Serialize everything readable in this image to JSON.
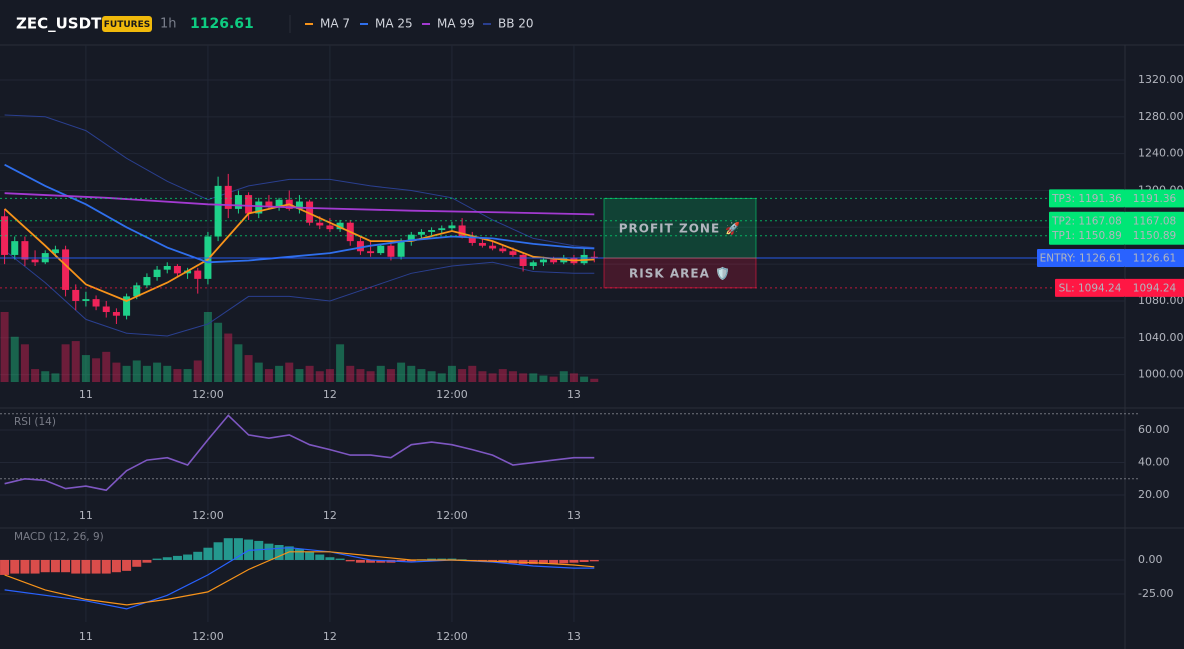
{
  "header": {
    "symbol": "ZEC_USDT",
    "badge": "FUTURES",
    "interval": "1h",
    "price": 1126.61
  },
  "chart_data": [
    {
      "type": "candlestick",
      "xlim": [
        -0.45,
        110.2
      ],
      "xticks": [
        {
          "value": 8,
          "label": "11"
        },
        {
          "value": 20,
          "label": "12:00"
        },
        {
          "value": 32,
          "label": "12"
        },
        {
          "value": 44,
          "label": "12:00"
        },
        {
          "value": 56,
          "label": "13"
        }
      ],
      "ylim": [
        992,
        1358
      ],
      "yticks": [
        {
          "value": 1000,
          "label": "1000.00"
        },
        {
          "value": 1040,
          "label": "1040.00"
        },
        {
          "value": 1080,
          "label": "1080.00"
        },
        {
          "value": 1120,
          "label": "1120.00"
        },
        {
          "value": 1160,
          "label": "1160.00"
        },
        {
          "value": 1200,
          "label": "1200.00"
        },
        {
          "value": 1240,
          "label": "1240.00"
        },
        {
          "value": 1280,
          "label": "1280.00"
        },
        {
          "value": 1320,
          "label": "1320.00"
        }
      ],
      "grid": true,
      "up_color": "#1fd18a",
      "down_color": "#f0245a",
      "open": [
        1172,
        1130,
        1145,
        1125,
        1122,
        1132,
        1136,
        1092,
        1080,
        1082,
        1074,
        1068,
        1064,
        1085,
        1097,
        1106,
        1114,
        1118,
        1110,
        1113,
        1104,
        1150,
        1205,
        1180,
        1195,
        1175,
        1188,
        1183,
        1190,
        1180,
        1188,
        1165,
        1162,
        1158,
        1165,
        1145,
        1134,
        1132,
        1140,
        1128,
        1145,
        1152,
        1155,
        1157,
        1159,
        1162,
        1150,
        1143,
        1140,
        1137,
        1134,
        1130,
        1118,
        1122,
        1125,
        1122,
        1127,
        1121,
        1128
      ],
      "high": [
        1180,
        1150,
        1150,
        1135,
        1135,
        1140,
        1140,
        1098,
        1090,
        1086,
        1080,
        1072,
        1088,
        1100,
        1110,
        1118,
        1122,
        1120,
        1116,
        1116,
        1155,
        1215,
        1218,
        1200,
        1198,
        1192,
        1195,
        1192,
        1200,
        1195,
        1190,
        1172,
        1170,
        1168,
        1168,
        1150,
        1145,
        1142,
        1142,
        1148,
        1155,
        1158,
        1160,
        1162,
        1166,
        1170,
        1155,
        1148,
        1145,
        1141,
        1138,
        1133,
        1124,
        1128,
        1128,
        1130,
        1130,
        1138,
        1134
      ],
      "low": [
        1120,
        1125,
        1118,
        1118,
        1120,
        1128,
        1085,
        1070,
        1074,
        1070,
        1062,
        1055,
        1060,
        1082,
        1094,
        1102,
        1110,
        1106,
        1104,
        1088,
        1098,
        1145,
        1170,
        1175,
        1168,
        1170,
        1180,
        1178,
        1178,
        1175,
        1162,
        1158,
        1155,
        1155,
        1140,
        1130,
        1128,
        1130,
        1124,
        1125,
        1140,
        1148,
        1150,
        1153,
        1155,
        1148,
        1140,
        1138,
        1135,
        1132,
        1128,
        1112,
        1114,
        1118,
        1120,
        1120,
        1119,
        1119,
        1122
      ],
      "close": [
        1130,
        1145,
        1125,
        1122,
        1132,
        1136,
        1092,
        1080,
        1082,
        1074,
        1068,
        1064,
        1085,
        1097,
        1106,
        1114,
        1118,
        1110,
        1113,
        1104,
        1150,
        1205,
        1180,
        1195,
        1175,
        1188,
        1183,
        1190,
        1180,
        1188,
        1165,
        1162,
        1158,
        1165,
        1145,
        1134,
        1132,
        1140,
        1128,
        1145,
        1152,
        1155,
        1157,
        1159,
        1162,
        1150,
        1143,
        1140,
        1137,
        1134,
        1130,
        1118,
        1122,
        1125,
        1122,
        1127,
        1121,
        1130,
        1126.61
      ],
      "volume": [
        65,
        42,
        35,
        12,
        10,
        8,
        35,
        38,
        25,
        22,
        28,
        18,
        15,
        20,
        15,
        18,
        15,
        12,
        12,
        20,
        65,
        55,
        45,
        35,
        25,
        18,
        12,
        15,
        18,
        12,
        15,
        10,
        12,
        35,
        15,
        12,
        10,
        15,
        12,
        18,
        15,
        12,
        10,
        8,
        15,
        12,
        15,
        10,
        8,
        12,
        10,
        8,
        8,
        6,
        5,
        10,
        8,
        5,
        3
      ],
      "series": [
        {
          "name": "MA 7",
          "color": "#f7931a",
          "x": [
            0,
            4,
            8,
            12,
            16,
            20,
            24,
            28,
            32,
            36,
            40,
            44,
            48,
            52,
            56,
            58
          ],
          "values": [
            1180,
            1140,
            1098,
            1080,
            1100,
            1125,
            1175,
            1185,
            1165,
            1145,
            1145,
            1156,
            1145,
            1128,
            1124,
            1125
          ]
        },
        {
          "name": "MA 25",
          "color": "#2f6fed",
          "x": [
            0,
            4,
            8,
            12,
            16,
            20,
            24,
            28,
            32,
            36,
            40,
            44,
            48,
            52,
            56,
            58
          ],
          "values": [
            1228,
            1205,
            1185,
            1160,
            1138,
            1122,
            1124,
            1128,
            1132,
            1140,
            1146,
            1150,
            1148,
            1142,
            1138,
            1137
          ]
        },
        {
          "name": "MA 99",
          "color": "#a33ad1",
          "x": [
            0,
            10,
            20,
            30,
            40,
            50,
            58
          ],
          "values": [
            1197,
            1192,
            1185,
            1181,
            1178,
            1176,
            1174
          ]
        },
        {
          "name": "BB 20",
          "color": "#2a3f8f",
          "x": [
            0,
            4,
            8,
            12,
            16,
            20,
            24,
            28,
            32,
            36,
            40,
            44,
            48,
            52,
            56,
            58
          ],
          "values": [
            1282,
            1280,
            1265,
            1235,
            1210,
            1190,
            1205,
            1212,
            1212,
            1205,
            1200,
            1192,
            1168,
            1148,
            1140,
            1138
          ],
          "lower": [
            1135,
            1100,
            1060,
            1045,
            1042,
            1055,
            1085,
            1085,
            1080,
            1095,
            1110,
            1118,
            1122,
            1112,
            1110,
            1110
          ]
        }
      ],
      "levels": [
        {
          "label": "TP3: 1191.36",
          "value": 1191.36,
          "color": "#00e676",
          "style": "dotted"
        },
        {
          "label": "TP2: 1167.08",
          "value": 1167.08,
          "color": "#00e676",
          "style": "dotted"
        },
        {
          "label": "TP1: 1150.89",
          "value": 1150.89,
          "color": "#00e676",
          "style": "dotted"
        },
        {
          "label": "ENTRY: 1126.61",
          "value": 1126.61,
          "color": "#2962ff",
          "style": "solid"
        },
        {
          "label": "SL: 1094.24",
          "value": 1094.24,
          "color": "#ff1744",
          "style": "dotted"
        }
      ],
      "zones": [
        {
          "label": "PROFIT ZONE 🚀",
          "from": 1126.61,
          "to": 1191.36,
          "color": "#00e676"
        },
        {
          "label": "RISK AREA 🛡️",
          "from": 1094.24,
          "to": 1126.61,
          "color": "#ff1744"
        }
      ]
    },
    {
      "type": "line",
      "label": "RSI (14)",
      "xlim": [
        -0.45,
        110.2
      ],
      "xticks": [
        {
          "value": 8,
          "label": "11"
        },
        {
          "value": 20,
          "label": "12:00"
        },
        {
          "value": 32,
          "label": "12"
        },
        {
          "value": 44,
          "label": "12:00"
        },
        {
          "value": 56,
          "label": "13"
        }
      ],
      "ylim": [
        10.8,
        70.5
      ],
      "yticks": [
        {
          "value": 20,
          "label": "20.00"
        },
        {
          "value": 40,
          "label": "40.00"
        },
        {
          "value": 60,
          "label": "60.00"
        }
      ],
      "grid": true,
      "bands": [
        30,
        70
      ],
      "series": [
        {
          "color": "#7e57c2",
          "x": [
            0,
            2,
            4,
            6,
            8,
            10,
            12,
            14,
            16,
            18,
            20,
            22,
            24,
            26,
            28,
            30,
            32,
            34,
            36,
            38,
            40,
            42,
            44,
            46,
            48,
            50,
            52,
            54,
            56,
            58
          ],
          "values": [
            27,
            30,
            29,
            24,
            25.5,
            23,
            35,
            41.5,
            43,
            38.5,
            54,
            69,
            57,
            55,
            57,
            51,
            48,
            44.6,
            44.6,
            43,
            51,
            52.6,
            51,
            48,
            44.6,
            38.5,
            40,
            41.5,
            43,
            43
          ]
        }
      ]
    },
    {
      "type": "macd",
      "label": "MACD (12, 26, 9)",
      "xlim": [
        -0.45,
        110.2
      ],
      "xticks": [
        {
          "value": 8,
          "label": "11"
        },
        {
          "value": 20,
          "label": "12:00"
        },
        {
          "value": 32,
          "label": "12"
        },
        {
          "value": 44,
          "label": "12:00"
        },
        {
          "value": 56,
          "label": "13"
        }
      ],
      "ylim": [
        -45.6,
        23.5
      ],
      "yticks": [
        {
          "value": -25,
          "label": "-25.00"
        },
        {
          "value": 0,
          "label": "0.00"
        }
      ],
      "grid": true,
      "histogram": {
        "up_color": "#26a69a",
        "down_color": "#ef5350",
        "values": [
          -11,
          -10,
          -10,
          -10,
          -9,
          -9,
          -9,
          -10,
          -10,
          -10,
          -10,
          -9,
          -8,
          -5,
          -2,
          1,
          2,
          3,
          4,
          6,
          9,
          13,
          16,
          16,
          15,
          14,
          12,
          11,
          10,
          8,
          6,
          4,
          2,
          1,
          -1,
          -2,
          -2,
          -2,
          -2,
          -1,
          -1,
          0.5,
          1,
          1,
          1,
          0.5,
          -0.5,
          -1,
          -1.5,
          -2,
          -2.5,
          -3,
          -3,
          -3,
          -3,
          -2.5,
          -2,
          -1.5,
          -1
        ]
      },
      "series": [
        {
          "color": "#2962ff",
          "x": [
            0,
            4,
            8,
            12,
            16,
            20,
            24,
            28,
            32,
            36,
            40,
            44,
            48,
            52,
            56,
            58
          ],
          "values": [
            -22,
            -26,
            -30,
            -36,
            -26,
            -11,
            7,
            9,
            6,
            0,
            -1.5,
            0,
            -1.5,
            -4.4,
            -6,
            -6
          ]
        },
        {
          "color": "#f7931a",
          "x": [
            0,
            4,
            8,
            12,
            16,
            20,
            24,
            28,
            32,
            36,
            40,
            44,
            48,
            52,
            56,
            58
          ],
          "values": [
            -11,
            -22,
            -29,
            -33,
            -29,
            -23.5,
            -7,
            6,
            6,
            3,
            0,
            0,
            -1,
            -2,
            -3.7,
            -5
          ]
        }
      ]
    }
  ]
}
